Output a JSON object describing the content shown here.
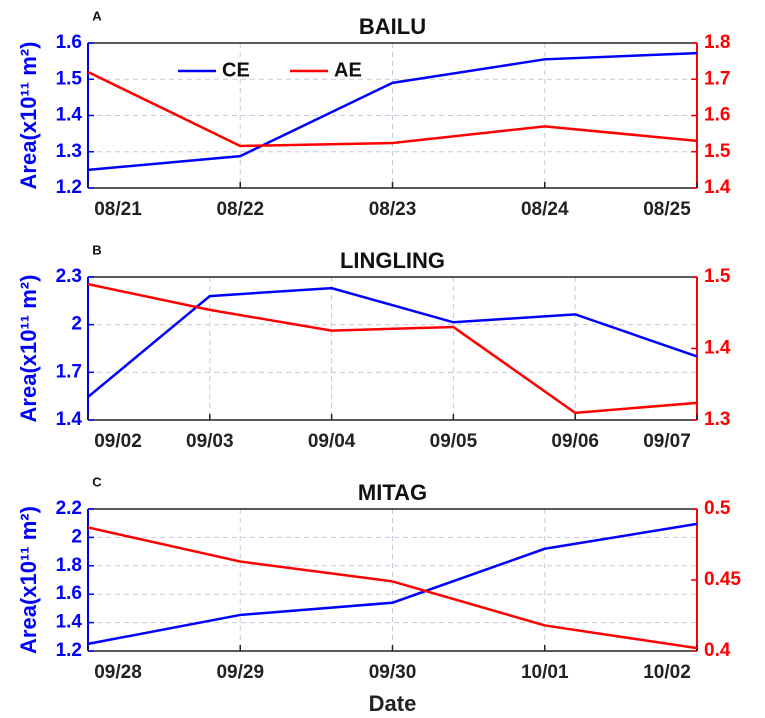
{
  "chart_data": [
    {
      "type": "line",
      "panel": "A",
      "title": "BAILU",
      "ylabel": "Area(x10¹¹ m²)",
      "categories": [
        "08/21",
        "08/22",
        "08/23",
        "08/24",
        "08/25"
      ],
      "series": [
        {
          "name": "CE",
          "color": "#0000ff",
          "values": [
            1.25,
            1.288,
            1.49,
            1.555,
            1.572
          ]
        },
        {
          "name": "AE",
          "color": "#ff0000",
          "axis": "y2",
          "values": [
            1.72,
            1.516,
            1.524,
            1.57,
            1.53
          ]
        }
      ],
      "ylim": [
        1.2,
        1.6
      ],
      "yticks": [
        1.2,
        1.3,
        1.4,
        1.5,
        1.6
      ],
      "y2lim": [
        1.4,
        1.8
      ],
      "y2ticks": [
        1.4,
        1.5,
        1.6,
        1.7,
        1.8
      ],
      "grid": true,
      "legend": "upper left"
    },
    {
      "type": "line",
      "panel": "B",
      "title": "LINGLING",
      "ylabel": "Area(x10¹¹ m²)",
      "categories": [
        "09/02",
        "09/03",
        "09/04",
        "09/05",
        "09/06",
        "09/07"
      ],
      "series": [
        {
          "name": "CE",
          "color": "#0000ff",
          "values": [
            1.545,
            2.18,
            2.23,
            2.015,
            2.065,
            1.8
          ]
        },
        {
          "name": "AE",
          "color": "#ff0000",
          "axis": "y2",
          "values": [
            1.49,
            1.454,
            1.425,
            1.43,
            1.31,
            1.324
          ]
        }
      ],
      "ylim": [
        1.4,
        2.3
      ],
      "yticks": [
        1.4,
        1.7,
        2,
        2.3
      ],
      "y2lim": [
        1.3,
        1.5
      ],
      "y2ticks": [
        1.3,
        1.4,
        1.5
      ],
      "grid": true
    },
    {
      "type": "line",
      "panel": "C",
      "title": "MITAG",
      "ylabel": "Area(x10¹¹ m²)",
      "xlabel": "Date",
      "categories": [
        "09/28",
        "09/29",
        "09/30",
        "10/01",
        "10/02"
      ],
      "series": [
        {
          "name": "CE",
          "color": "#0000ff",
          "values": [
            1.25,
            1.454,
            1.54,
            1.92,
            2.095
          ]
        },
        {
          "name": "AE",
          "color": "#ff0000",
          "axis": "y2",
          "values": [
            0.487,
            0.463,
            0.449,
            0.418,
            0.402
          ]
        }
      ],
      "ylim": [
        1.2,
        2.2
      ],
      "yticks": [
        1.2,
        1.4,
        1.6,
        1.8,
        2,
        2.2
      ],
      "y2lim": [
        0.4,
        0.5
      ],
      "y2ticks": [
        0.4,
        0.45,
        0.5
      ],
      "grid": true
    }
  ]
}
